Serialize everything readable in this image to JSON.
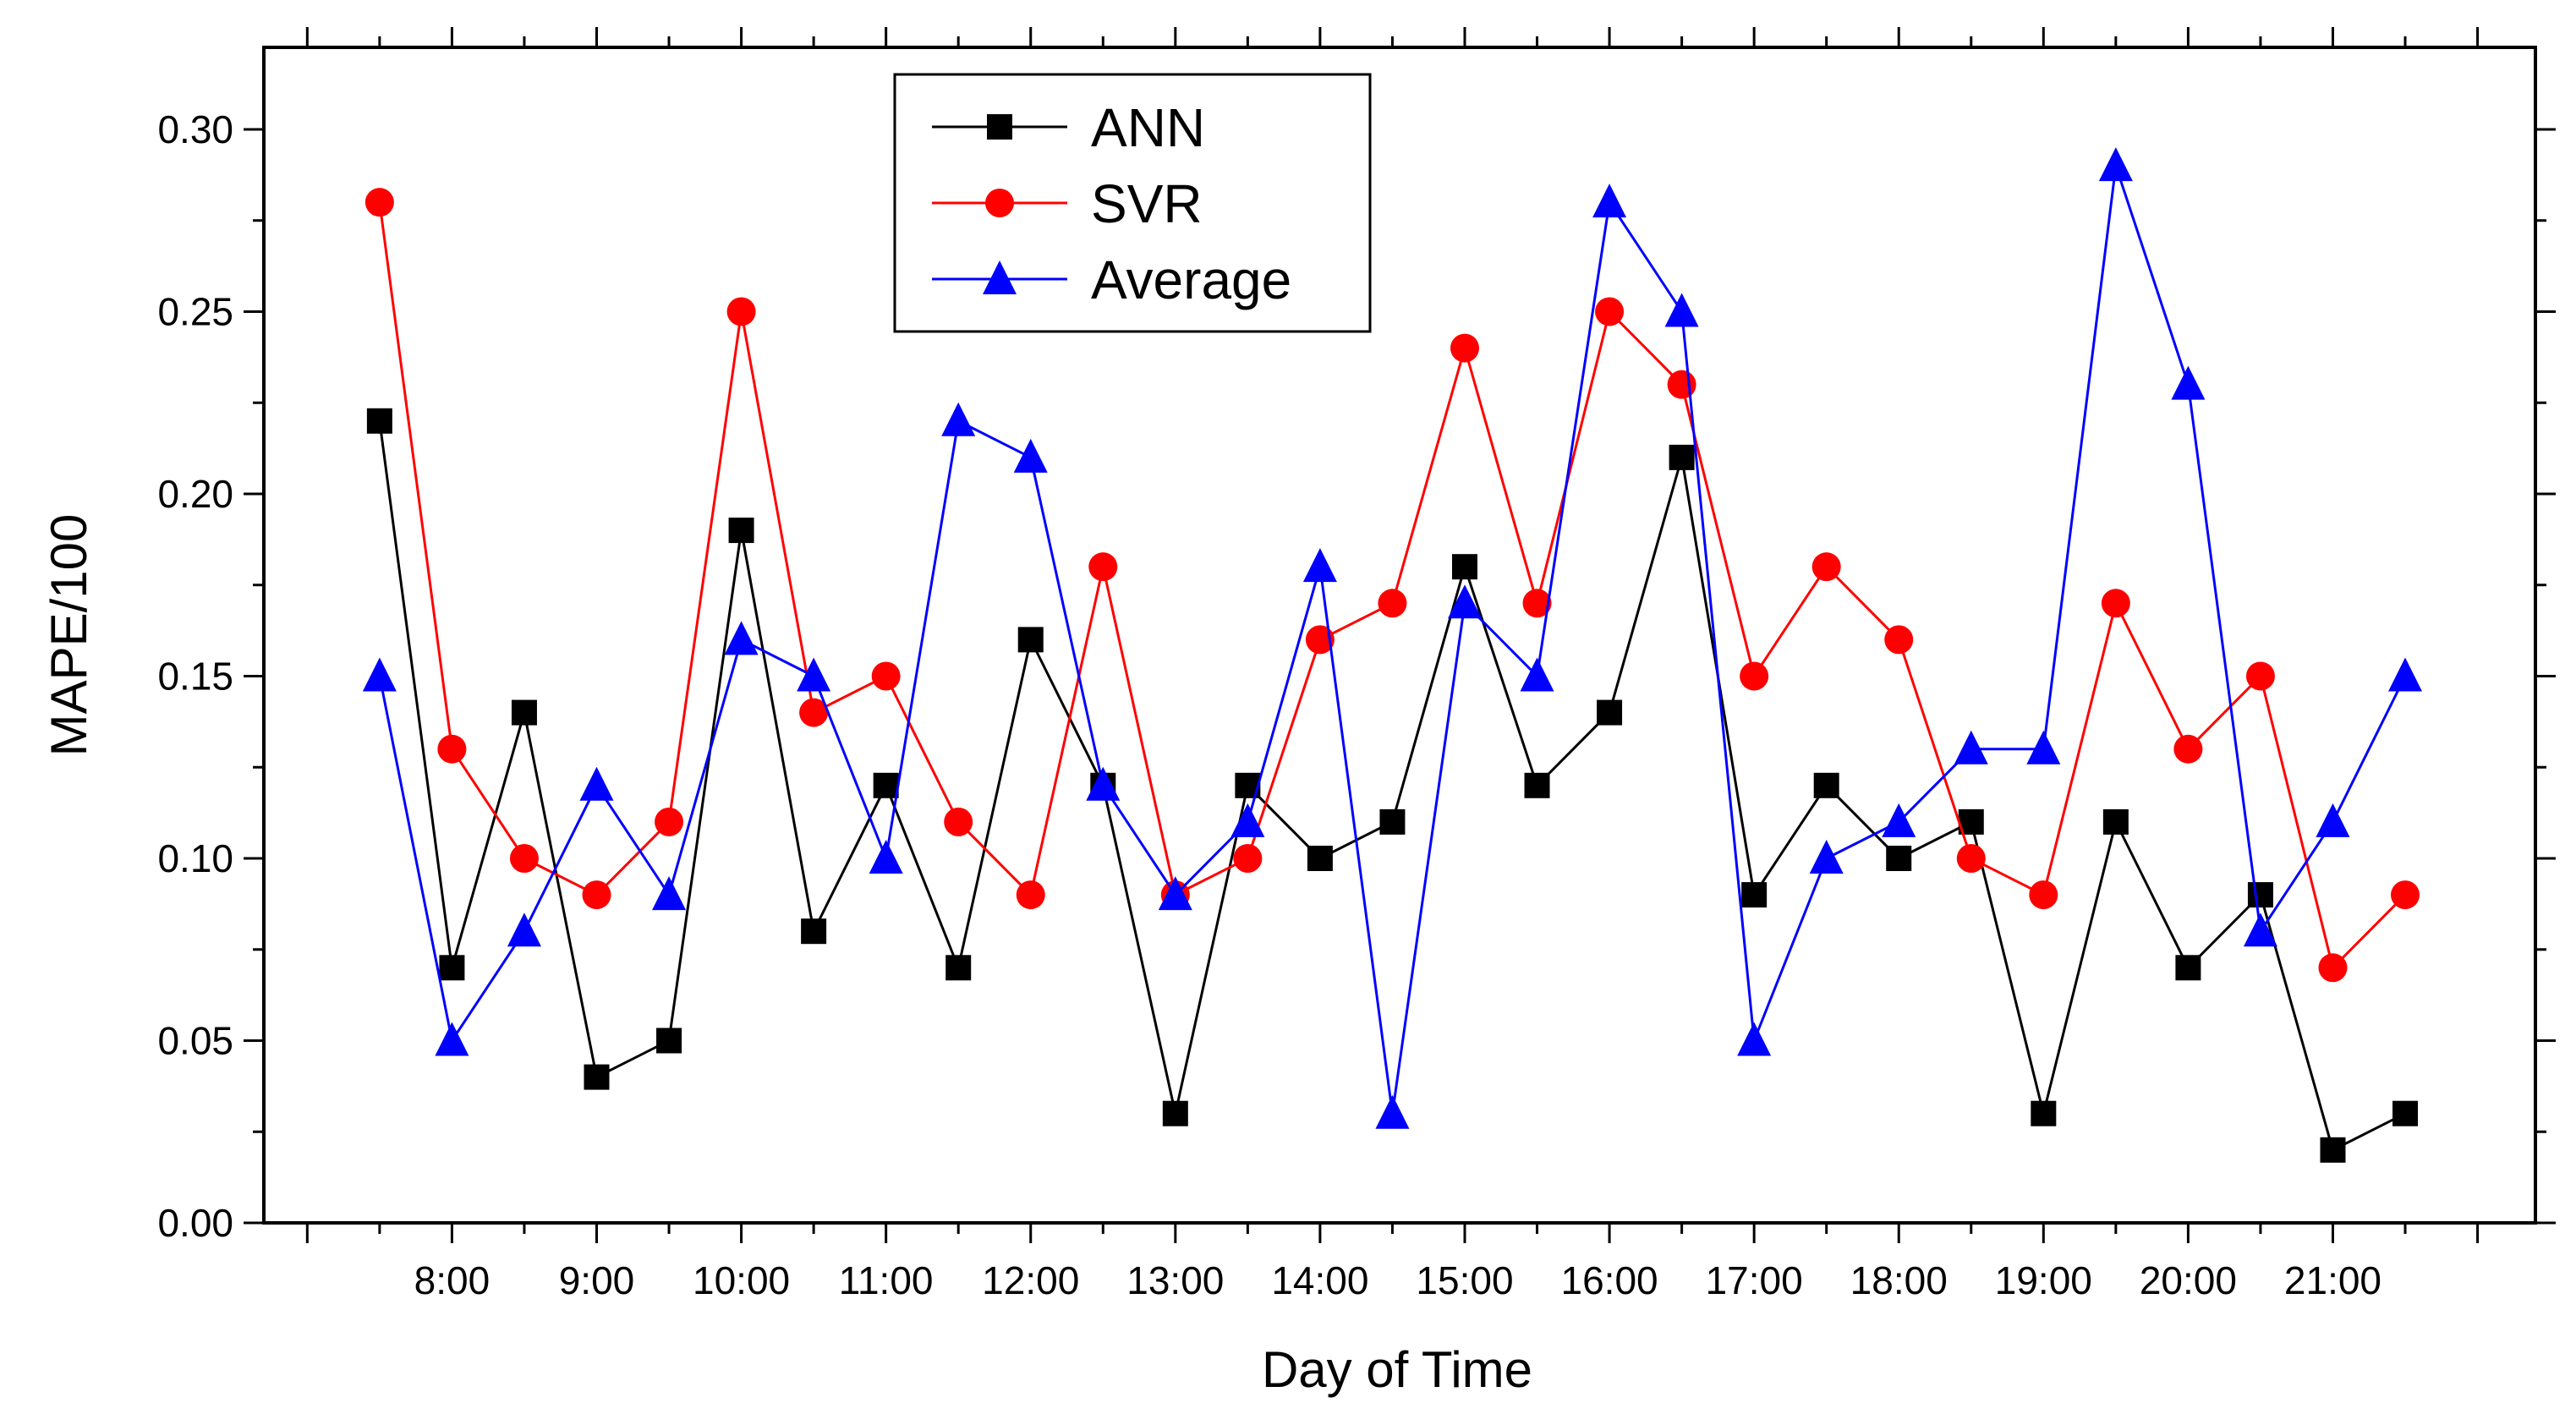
{
  "chart_data": {
    "type": "line",
    "title": "",
    "xlabel": "Day of Time",
    "ylabel": "MAPE/100",
    "x": [
      7.5,
      8,
      8.5,
      9,
      9.5,
      10,
      10.5,
      11,
      11.5,
      12,
      12.5,
      13,
      13.5,
      14,
      14.5,
      15,
      15.5,
      16,
      16.5,
      17,
      17.5,
      18,
      18.5,
      19,
      19.5,
      20,
      20.5,
      21,
      21.5
    ],
    "xlim": [
      6.7,
      22.4
    ],
    "xticks": [
      {
        "value": 8,
        "label": "8:00"
      },
      {
        "value": 9,
        "label": "9:00"
      },
      {
        "value": 10,
        "label": "10:00"
      },
      {
        "value": 11,
        "label": "11:00"
      },
      {
        "value": 12,
        "label": "12:00"
      },
      {
        "value": 13,
        "label": "13:00"
      },
      {
        "value": 14,
        "label": "14:00"
      },
      {
        "value": 15,
        "label": "15:00"
      },
      {
        "value": 16,
        "label": "16:00"
      },
      {
        "value": 17,
        "label": "17:00"
      },
      {
        "value": 18,
        "label": "18:00"
      },
      {
        "value": 19,
        "label": "19:00"
      },
      {
        "value": 20,
        "label": "20:00"
      },
      {
        "value": 21,
        "label": "21:00"
      }
    ],
    "ylim": [
      0,
      0.3225
    ],
    "yticks": [
      {
        "value": 0.0,
        "label": "0.00"
      },
      {
        "value": 0.05,
        "label": "0.05"
      },
      {
        "value": 0.1,
        "label": "0.10"
      },
      {
        "value": 0.15,
        "label": "0.15"
      },
      {
        "value": 0.2,
        "label": "0.20"
      },
      {
        "value": 0.25,
        "label": "0.25"
      },
      {
        "value": 0.3,
        "label": "0.30"
      }
    ],
    "grid": false,
    "legend_position": "top-center",
    "series": [
      {
        "name": "ANN",
        "color": "#000000",
        "marker": "square",
        "values": [
          0.22,
          0.07,
          0.14,
          0.04,
          0.05,
          0.19,
          0.08,
          0.12,
          0.07,
          0.16,
          0.12,
          0.03,
          0.12,
          0.1,
          0.11,
          0.18,
          0.12,
          0.14,
          0.21,
          0.09,
          0.12,
          0.1,
          0.11,
          0.03,
          0.11,
          0.07,
          0.09,
          0.02,
          0.03
        ]
      },
      {
        "name": "SVR",
        "color": "#ff0000",
        "marker": "circle",
        "values": [
          0.28,
          0.13,
          0.1,
          0.09,
          0.11,
          0.25,
          0.14,
          0.15,
          0.11,
          0.09,
          0.18,
          0.09,
          0.1,
          0.16,
          0.17,
          0.24,
          0.17,
          0.25,
          0.23,
          0.15,
          0.18,
          0.16,
          0.1,
          0.09,
          0.17,
          0.13,
          0.15,
          0.07,
          0.09
        ]
      },
      {
        "name": "Average",
        "color": "#0000ff",
        "marker": "triangle",
        "values": [
          0.15,
          0.05,
          0.08,
          0.12,
          0.09,
          0.16,
          0.15,
          0.1,
          0.22,
          0.21,
          0.12,
          0.09,
          0.11,
          0.18,
          0.03,
          0.17,
          0.15,
          0.28,
          0.25,
          0.05,
          0.1,
          0.11,
          0.13,
          0.13,
          0.29,
          0.23,
          0.08,
          0.11,
          0.15
        ]
      }
    ]
  }
}
